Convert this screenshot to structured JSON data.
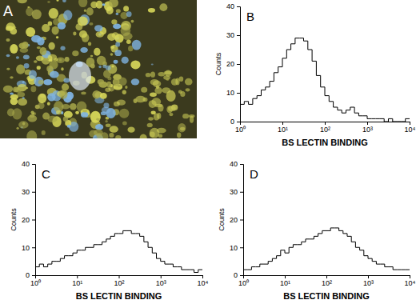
{
  "chart_data": [
    {
      "type": "image",
      "title": "A"
    },
    {
      "type": "histogram",
      "title": "B",
      "x_label": "BS LECTIN BINDING",
      "y_label": "Counts",
      "log": "x",
      "xlim": [
        1,
        10000
      ],
      "ylim": [
        0,
        40
      ],
      "xticks": [
        {
          "value": 1,
          "label": "10⁰"
        },
        {
          "value": 10,
          "label": "10¹"
        },
        {
          "value": 100,
          "label": "10²"
        },
        {
          "value": 1000,
          "label": "10³"
        },
        {
          "value": 10000,
          "label": "10⁴"
        }
      ],
      "yticks": [
        0,
        10,
        20,
        30,
        40
      ],
      "bins": [
        1,
        1.259,
        1.585,
        1.995,
        2.512,
        3.162,
        3.981,
        5.012,
        6.31,
        7.943,
        10,
        12.59,
        15.85,
        19.95,
        25.12,
        31.62,
        39.81,
        50.12,
        63.1,
        79.43,
        100,
        125.9,
        158.5,
        199.5,
        251.2,
        316.2,
        398.1,
        501.2,
        631,
        794.3,
        1000,
        1259,
        1585,
        1995,
        2512,
        3162,
        3981,
        5012,
        6310,
        7943,
        10000
      ],
      "counts": [
        6,
        7,
        6,
        8,
        9,
        11,
        12,
        14,
        17,
        19,
        22,
        25,
        27,
        29,
        29,
        28,
        25,
        21,
        16,
        12,
        9,
        7,
        5,
        4,
        3,
        4,
        5,
        3,
        2,
        2,
        1,
        1,
        1,
        1,
        0,
        1,
        0,
        0,
        0,
        1
      ],
      "color": "#000000"
    },
    {
      "type": "histogram",
      "title": "C",
      "x_label": "BS LECTIN BINDING",
      "y_label": "Counts",
      "log": "x",
      "xlim": [
        1,
        10000
      ],
      "ylim": [
        0,
        40
      ],
      "xticks": [
        {
          "value": 1,
          "label": "10⁰"
        },
        {
          "value": 10,
          "label": "10¹"
        },
        {
          "value": 100,
          "label": "10²"
        },
        {
          "value": 1000,
          "label": "10³"
        },
        {
          "value": 10000,
          "label": "10⁴"
        }
      ],
      "yticks": [
        0,
        10,
        20,
        30,
        40
      ],
      "bins": [
        1,
        1.259,
        1.585,
        1.995,
        2.512,
        3.162,
        3.981,
        5.012,
        6.31,
        7.943,
        10,
        12.59,
        15.85,
        19.95,
        25.12,
        31.62,
        39.81,
        50.12,
        63.1,
        79.43,
        100,
        125.9,
        158.5,
        199.5,
        251.2,
        316.2,
        398.1,
        501.2,
        631,
        794.3,
        1000,
        1259,
        1585,
        1995,
        2512,
        3162,
        3981,
        5012,
        6310,
        7943,
        10000
      ],
      "counts": [
        3,
        4,
        3,
        4,
        5,
        5,
        6,
        7,
        7,
        8,
        9,
        9,
        10,
        10,
        11,
        11,
        12,
        13,
        14,
        15,
        15,
        16,
        16,
        15,
        15,
        14,
        12,
        10,
        8,
        6,
        5,
        4,
        4,
        3,
        3,
        2,
        2,
        2,
        1,
        2
      ],
      "color": "#000000"
    },
    {
      "type": "histogram",
      "title": "D",
      "x_label": "BS LECTIN BINDING",
      "y_label": "Counts",
      "log": "x",
      "xlim": [
        1,
        10000
      ],
      "ylim": [
        0,
        40
      ],
      "xticks": [
        {
          "value": 1,
          "label": "10⁰"
        },
        {
          "value": 10,
          "label": "10¹"
        },
        {
          "value": 100,
          "label": "10²"
        },
        {
          "value": 1000,
          "label": "10³"
        },
        {
          "value": 10000,
          "label": "10⁴"
        }
      ],
      "yticks": [
        0,
        10,
        20,
        30,
        40
      ],
      "bins": [
        1,
        1.259,
        1.585,
        1.995,
        2.512,
        3.162,
        3.981,
        5.012,
        6.31,
        7.943,
        10,
        12.59,
        15.85,
        19.95,
        25.12,
        31.62,
        39.81,
        50.12,
        63.1,
        79.43,
        100,
        125.9,
        158.5,
        199.5,
        251.2,
        316.2,
        398.1,
        501.2,
        631,
        794.3,
        1000,
        1259,
        1585,
        1995,
        2512,
        3162,
        3981,
        5012,
        6310,
        7943,
        10000
      ],
      "counts": [
        2,
        2,
        3,
        3,
        4,
        4,
        5,
        6,
        7,
        9,
        8,
        10,
        11,
        11,
        12,
        13,
        13,
        14,
        15,
        16,
        16,
        17,
        17,
        16,
        15,
        14,
        12,
        10,
        9,
        7,
        6,
        5,
        4,
        4,
        3,
        3,
        2,
        2,
        2,
        2
      ],
      "color": "#000000"
    }
  ]
}
